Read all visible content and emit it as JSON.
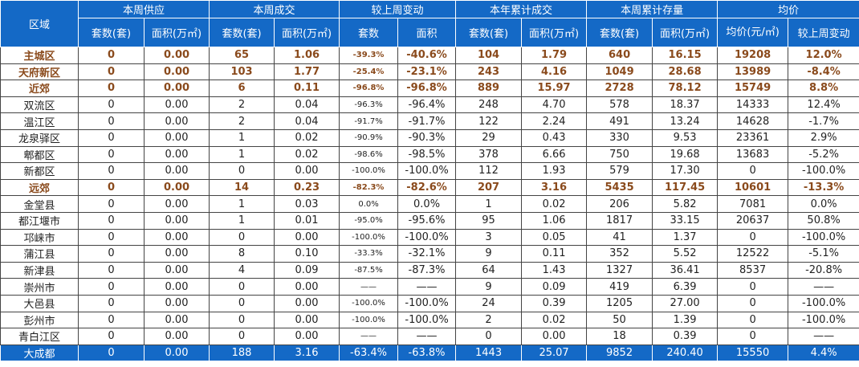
{
  "table": {
    "group_headers": {
      "region": "区域",
      "weekly_supply": "本周供应",
      "weekly_deals": "本周成交",
      "wow_change": "较上周变动",
      "ytd_deals": "本年累计成交",
      "weekly_inventory": "本周累计存量",
      "avg_price": "均价"
    },
    "sub_headers": {
      "supply_units": "套数(套)",
      "supply_area": "面积(万㎡)",
      "deal_units": "套数(套)",
      "deal_area": "面积(万㎡)",
      "change_units": "套数",
      "change_area": "面积",
      "ytd_units": "套数(套)",
      "ytd_area": "面积(万㎡)",
      "inv_units": "套数(套)",
      "inv_area": "面积(万㎡)",
      "avg_price": "均价(元/㎡)",
      "price_change": "较上周变动"
    },
    "rows": [
      {
        "region": "主城区",
        "style": "bold",
        "cells": [
          "0",
          "0.00",
          "65",
          "1.06",
          "-39.3%",
          "-40.6%",
          "104",
          "1.79",
          "640",
          "16.15",
          "19208",
          "12.0%"
        ]
      },
      {
        "region": "天府新区",
        "style": "bold",
        "cells": [
          "0",
          "0.00",
          "103",
          "1.77",
          "-25.4%",
          "-23.1%",
          "243",
          "4.16",
          "1049",
          "28.68",
          "13989",
          "-8.4%"
        ]
      },
      {
        "region": "近郊",
        "style": "bold",
        "cells": [
          "0",
          "0.00",
          "6",
          "0.11",
          "-96.8%",
          "-96.8%",
          "889",
          "15.97",
          "2728",
          "78.12",
          "15749",
          "8.8%"
        ]
      },
      {
        "region": "双流区",
        "style": "normal",
        "cells": [
          "0",
          "0.00",
          "2",
          "0.04",
          "-96.3%",
          "-96.4%",
          "248",
          "4.70",
          "578",
          "18.37",
          "14333",
          "12.4%"
        ]
      },
      {
        "region": "温江区",
        "style": "normal",
        "cells": [
          "0",
          "0.00",
          "2",
          "0.04",
          "-91.7%",
          "-91.7%",
          "122",
          "2.24",
          "491",
          "13.24",
          "14628",
          "-1.7%"
        ]
      },
      {
        "region": "龙泉驿区",
        "style": "normal",
        "cells": [
          "0",
          "0.00",
          "1",
          "0.02",
          "-90.9%",
          "-90.3%",
          "29",
          "0.43",
          "330",
          "9.53",
          "23361",
          "2.9%"
        ]
      },
      {
        "region": "郫都区",
        "style": "normal",
        "cells": [
          "0",
          "0.00",
          "1",
          "0.02",
          "-98.6%",
          "-98.5%",
          "378",
          "6.66",
          "750",
          "19.68",
          "13683",
          "-5.2%"
        ]
      },
      {
        "region": "新都区",
        "style": "normal",
        "cells": [
          "0",
          "0.00",
          "0",
          "0.00",
          "-100.0%",
          "-100.0%",
          "112",
          "1.93",
          "579",
          "17.30",
          "0",
          "-100.0%"
        ]
      },
      {
        "region": "远郊",
        "style": "bold",
        "cells": [
          "0",
          "0.00",
          "14",
          "0.23",
          "-82.3%",
          "-82.6%",
          "207",
          "3.16",
          "5435",
          "117.45",
          "10601",
          "-13.3%"
        ]
      },
      {
        "region": "金堂县",
        "style": "normal",
        "cells": [
          "0",
          "0.00",
          "1",
          "0.03",
          "0.0%",
          "0.0%",
          "1",
          "0.02",
          "206",
          "5.82",
          "7081",
          "0.0%"
        ]
      },
      {
        "region": "都江堰市",
        "style": "normal",
        "cells": [
          "0",
          "0.00",
          "1",
          "0.01",
          "-95.0%",
          "-95.6%",
          "95",
          "1.06",
          "1817",
          "33.15",
          "20637",
          "50.8%"
        ]
      },
      {
        "region": "邛崃市",
        "style": "normal",
        "cells": [
          "0",
          "0.00",
          "0",
          "0.00",
          "-100.0%",
          "-100.0%",
          "3",
          "0.05",
          "41",
          "1.37",
          "0",
          "-100.0%"
        ]
      },
      {
        "region": "蒲江县",
        "style": "normal",
        "cells": [
          "0",
          "0.00",
          "8",
          "0.10",
          "-33.3%",
          "-32.1%",
          "9",
          "0.11",
          "352",
          "5.52",
          "12522",
          "-5.1%"
        ]
      },
      {
        "region": "新津县",
        "style": "normal",
        "cells": [
          "0",
          "0.00",
          "4",
          "0.09",
          "-87.5%",
          "-87.3%",
          "64",
          "1.43",
          "1327",
          "36.41",
          "8537",
          "-20.8%"
        ]
      },
      {
        "region": "崇州市",
        "style": "normal",
        "cells": [
          "0",
          "0.00",
          "0",
          "0.00",
          "——",
          "——",
          "9",
          "0.09",
          "419",
          "6.39",
          "0",
          "——"
        ]
      },
      {
        "region": "大邑县",
        "style": "normal",
        "cells": [
          "0",
          "0.00",
          "0",
          "0.00",
          "-100.0%",
          "-100.0%",
          "24",
          "0.39",
          "1205",
          "27.00",
          "0",
          "-100.0%"
        ]
      },
      {
        "region": "彭州市",
        "style": "normal",
        "cells": [
          "0",
          "0.00",
          "0",
          "0.00",
          "-100.0%",
          "-100.0%",
          "2",
          "0.02",
          "50",
          "1.39",
          "0",
          "-100.0%"
        ]
      },
      {
        "region": "青白江区",
        "style": "normal",
        "cells": [
          "0",
          "0.00",
          "0",
          "0.00",
          "——",
          "——",
          "0",
          "0.00",
          "18",
          "0.39",
          "0",
          "——"
        ]
      }
    ],
    "total": {
      "region": "大成都",
      "cells": [
        "0",
        "0.00",
        "188",
        "3.16",
        "-63.4%",
        "-63.8%",
        "1443",
        "25.07",
        "9852",
        "240.40",
        "15550",
        "4.4%"
      ]
    }
  },
  "colors": {
    "header_bg": "#1469c6",
    "header_text": "#ffffff",
    "highlight_text": "#8a4a1c",
    "body_text": "#222222"
  }
}
